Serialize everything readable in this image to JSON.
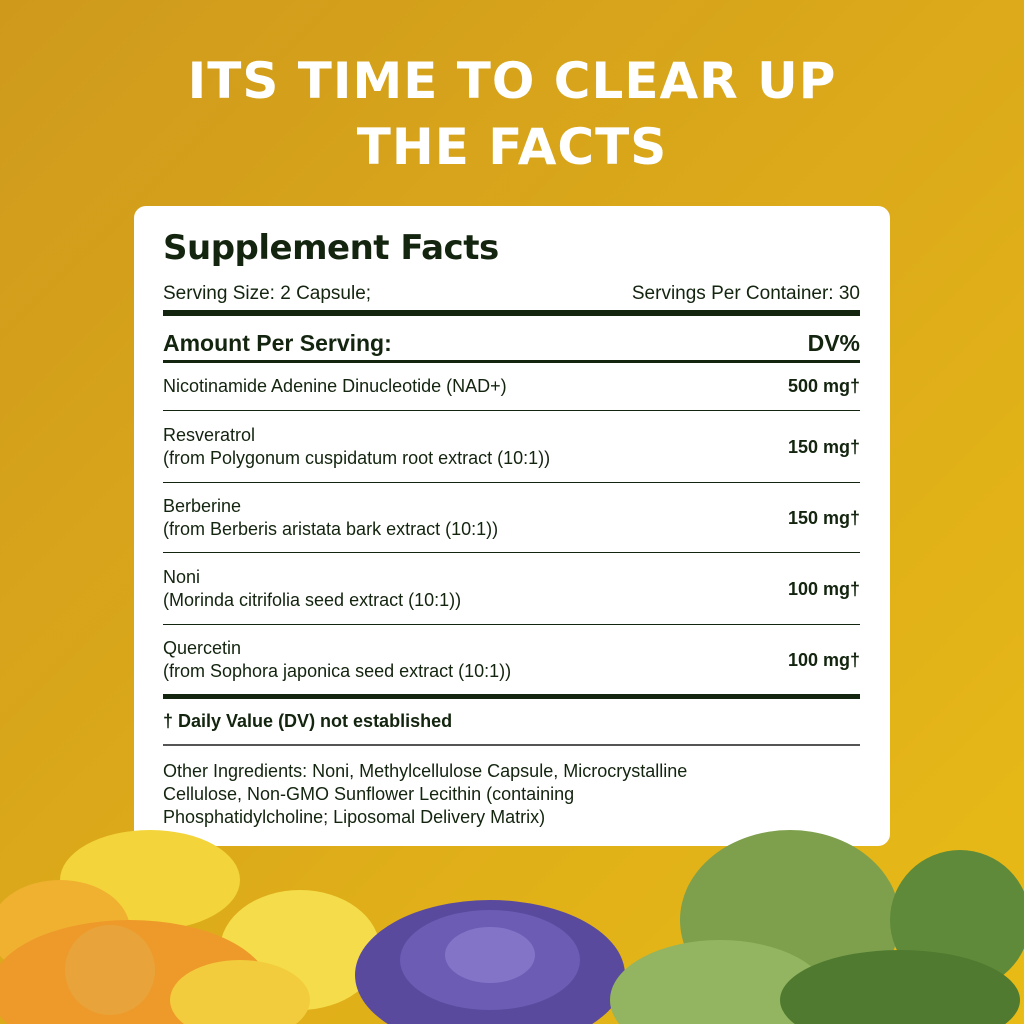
{
  "headline": {
    "line1": "ITS TIME TO CLEAR UP",
    "line2": "THE FACTS"
  },
  "facts": {
    "title": "Supplement Facts",
    "serving_size": "Serving Size: 2 Capsule;",
    "servings_per_container": "Servings Per Container: 30",
    "amount_header": "Amount Per Serving:",
    "dv_header": "DV%",
    "rows": [
      {
        "name": "Nicotinamide Adenine Dinucleotide (NAD+)",
        "source": "",
        "amount": "500 mg†"
      },
      {
        "name": "Resveratrol",
        "source": "(from Polygonum cuspidatum root extract (10:1))",
        "amount": "150 mg†"
      },
      {
        "name": "Berberine",
        "source": "(from Berberis aristata bark extract (10:1))",
        "amount": "150 mg†"
      },
      {
        "name": "Noni",
        "source": "(Morinda citrifolia seed extract (10:1))",
        "amount": "100 mg†"
      },
      {
        "name": "Quercetin",
        "source": "(from Sophora japonica seed extract (10:1))",
        "amount": "100 mg†"
      }
    ],
    "dv_note": "† Daily Value (DV) not established",
    "other_ingredients": [
      "Other Ingredients: Noni, Methylcellulose Capsule, Microcrystalline",
      "Cellulose, Non-GMO Sunflower Lecithin (containing",
      "Phosphatidylcholine; Liposomal Delivery Matrix)"
    ]
  },
  "colors": {
    "background": "#dcaa1a",
    "text": "#13240f",
    "card": "#ffffff"
  }
}
